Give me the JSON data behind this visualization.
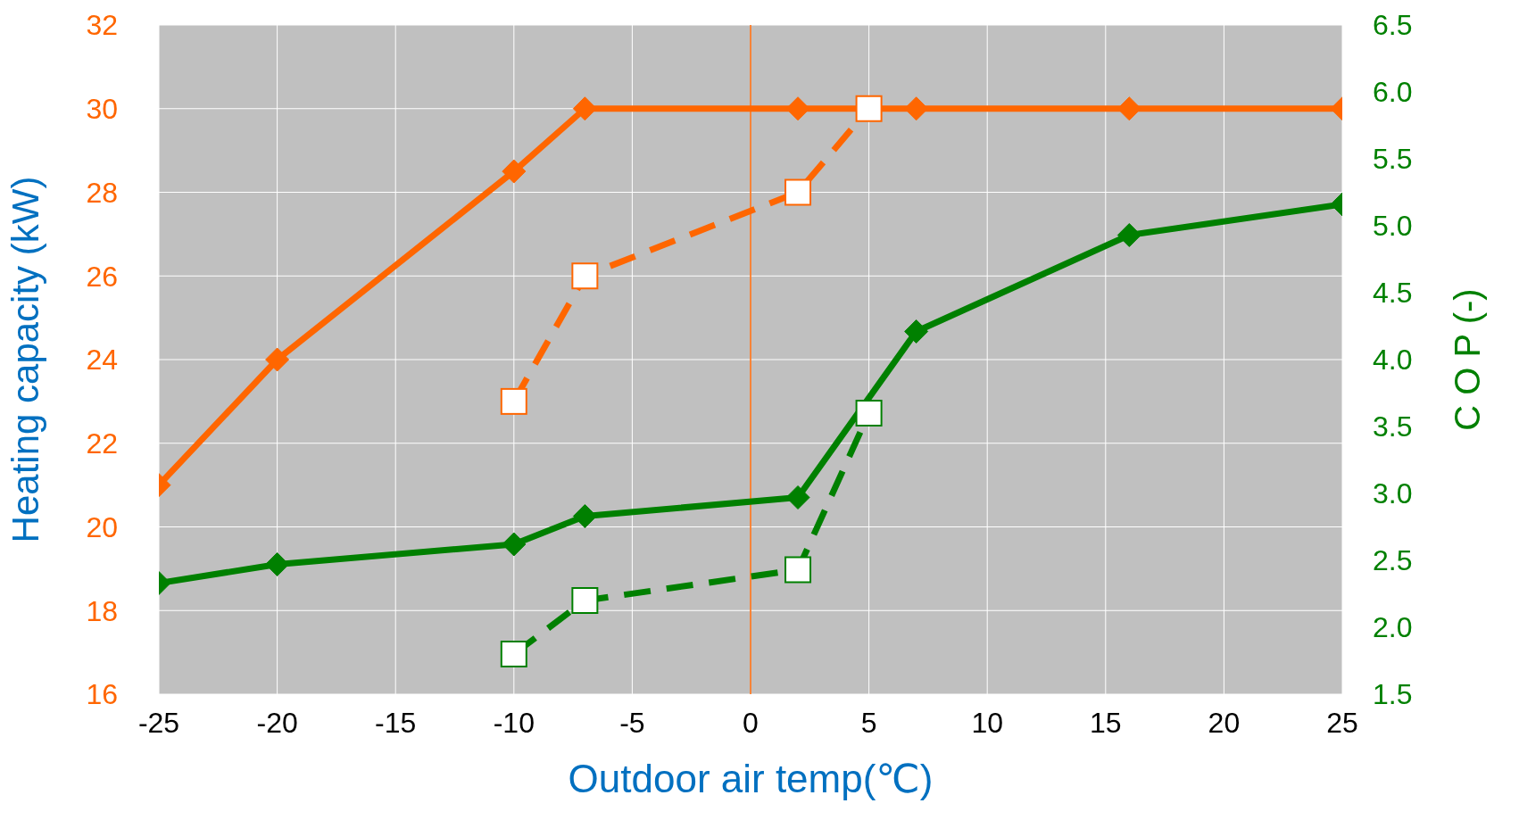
{
  "chart_data": {
    "type": "line",
    "xlabel": "Outdoor air temp(℃)",
    "ylabel": "Heating capacity (kW)",
    "y2label": "C O P (-)",
    "xlim": [
      -25,
      25
    ],
    "xticks": [
      -25,
      -20,
      -15,
      -10,
      -5,
      0,
      5,
      10,
      15,
      20,
      25
    ],
    "ylim": [
      16,
      32
    ],
    "yticks": [
      16,
      18,
      20,
      22,
      24,
      26,
      28,
      30,
      32
    ],
    "y2lim": [
      1.5,
      6.5
    ],
    "y2ticks": [
      1.5,
      {
        "value": 2,
        "label": "2.0"
      },
      2.5,
      {
        "value": 3,
        "label": "3.0"
      },
      3.5,
      {
        "value": 4,
        "label": "4.0"
      },
      4.5,
      {
        "value": 5,
        "label": "5.0"
      },
      5.5,
      {
        "value": 6,
        "label": "6.0"
      },
      6.5
    ],
    "grid": true,
    "ref_lines": [
      {
        "axis": "x",
        "value": 0,
        "color": "#ff6600"
      }
    ],
    "series": [
      {
        "color": "#ff6600",
        "x": [
          -25,
          -20,
          -10,
          -7,
          2,
          7,
          16,
          25
        ],
        "values": [
          21,
          24,
          28.5,
          30,
          30,
          30,
          30,
          30
        ],
        "marker": "diamond",
        "line_style": "solid"
      },
      {
        "color": "#ff6600",
        "x": [
          -10,
          -7,
          2,
          5
        ],
        "values": [
          23,
          26,
          28,
          30
        ],
        "marker": "square",
        "line_style": "dashed"
      },
      {
        "color": "#008000",
        "axis": "y2",
        "x": [
          -25,
          -20,
          -10,
          -7,
          2,
          7,
          16,
          25
        ],
        "values": [
          2.33,
          2.47,
          2.62,
          2.83,
          2.97,
          4.21,
          4.93,
          5.16
        ],
        "marker": "diamond",
        "line_style": "solid"
      },
      {
        "color": "#008000",
        "axis": "y2",
        "x": [
          -10,
          -7,
          2,
          5
        ],
        "values": [
          1.8,
          2.2,
          2.43,
          3.6
        ],
        "marker": "square",
        "line_style": "dashed"
      }
    ]
  }
}
